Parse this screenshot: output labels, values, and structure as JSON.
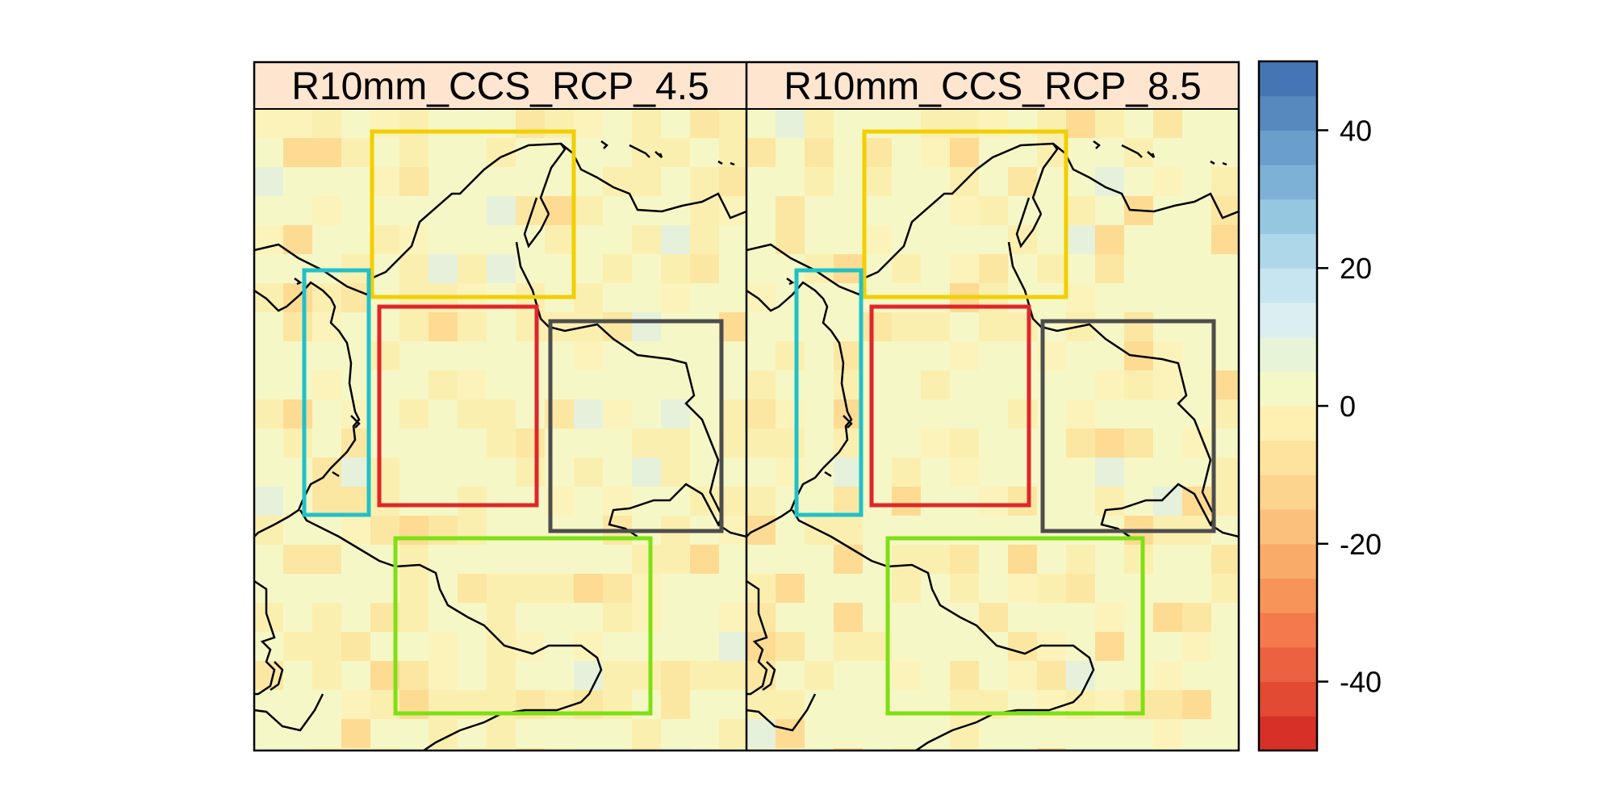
{
  "panels": [
    {
      "title": "R10mm_CCS_RCP_4.5"
    },
    {
      "title": "R10mm_CCS_RCP_8.5"
    }
  ],
  "colorbar": {
    "min": -50,
    "max": 50,
    "step": 5,
    "ticks": [
      40,
      20,
      0,
      -20,
      -40
    ],
    "tick_labels": [
      "40",
      "20",
      "0",
      "-20",
      "-40"
    ],
    "colors": [
      "#d73027",
      "#e24a33",
      "#ec6240",
      "#f4794d",
      "#f7945a",
      "#f9ab6a",
      "#fbc17c",
      "#fdd48e",
      "#fee39f",
      "#fef0b1",
      "#f4f8c6",
      "#e8f4d8",
      "#dbeff0",
      "#c6e5f0",
      "#aed7ea",
      "#95c7e1",
      "#7db2d6",
      "#6a9ecb",
      "#5789be",
      "#4575b4"
    ]
  },
  "regions": [
    {
      "name": "yellow",
      "color": "#f2cf00"
    },
    {
      "name": "cyan",
      "color": "#1fc1c9"
    },
    {
      "name": "red",
      "color": "#e0262a"
    },
    {
      "name": "gray",
      "color": "#4d4d4d"
    },
    {
      "name": "green",
      "color": "#7ee014"
    }
  ],
  "strip_color": "#fde5d0",
  "map_base_color": "#f6f7c6"
}
